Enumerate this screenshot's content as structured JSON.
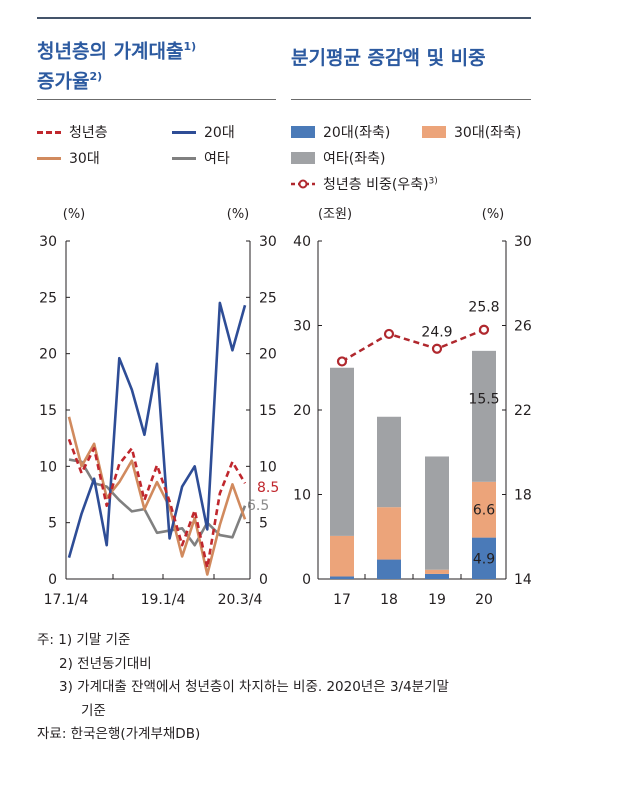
{
  "left": {
    "title_line1": "청년층의 가계대출",
    "title_sup1": "1)",
    "title_line2": "증가율",
    "title_sup2": "2)",
    "legend": [
      {
        "label": "청년층",
        "color": "#c0272d",
        "style": "dashed"
      },
      {
        "label": "20대",
        "color": "#2e4d96",
        "style": "solid"
      },
      {
        "label": "30대",
        "color": "#d18a5e",
        "style": "solid"
      },
      {
        "label": "여타",
        "color": "#7f7f7f",
        "style": "solid"
      }
    ]
  },
  "right": {
    "title": "분기평균 증감액 및 비중",
    "legend": [
      {
        "label": "20대(좌축)",
        "color": "#4a7ab8"
      },
      {
        "label": "30대(좌축)",
        "color": "#eca47a"
      },
      {
        "label": "여타(좌축)",
        "color": "#a0a2a5"
      },
      {
        "label": "청년층 비중(우축)",
        "sup": "3)",
        "color": "#b0282e"
      }
    ]
  },
  "chart_data": [
    {
      "type": "line",
      "ylabel_left": "(%)",
      "ylabel_right": "(%)",
      "ylim": [
        0,
        30
      ],
      "yticks": [
        0,
        5,
        10,
        15,
        20,
        25,
        30
      ],
      "x_tick_labels": [
        "17.1/4",
        "19.1/4",
        "20.3/4"
      ],
      "n_points": 15,
      "series": [
        {
          "name": "청년층",
          "color": "#c0272d",
          "dashed": true,
          "values": [
            12.4,
            9.4,
            11.6,
            6.5,
            10.2,
            11.6,
            7.0,
            10.1,
            6.9,
            3.0,
            6.1,
            1.0,
            7.6,
            10.4,
            8.5
          ],
          "end_label": "8.5"
        },
        {
          "name": "20대",
          "color": "#2e4d96",
          "values": [
            1.9,
            5.8,
            8.9,
            3.0,
            19.6,
            16.8,
            12.8,
            19.1,
            3.6,
            8.2,
            10.0,
            4.4,
            24.5,
            20.3,
            24.3
          ]
        },
        {
          "name": "30대",
          "color": "#d18a5e",
          "values": [
            14.4,
            10.0,
            12.0,
            7.2,
            8.6,
            10.5,
            6.2,
            8.6,
            6.4,
            2.0,
            5.4,
            0.4,
            4.8,
            8.4,
            5.3
          ]
        },
        {
          "name": "여타",
          "color": "#808080",
          "values": [
            10.6,
            10.4,
            8.5,
            8.2,
            7.0,
            6.0,
            6.2,
            4.1,
            4.3,
            4.5,
            3.0,
            5.0,
            3.9,
            3.7,
            6.5
          ],
          "end_label": "6.5"
        }
      ]
    },
    {
      "type": "bar",
      "stacked": true,
      "ylabel_left": "(조원)",
      "ylabel_right": "(%)",
      "ylim": [
        0,
        40
      ],
      "yticks": [
        0,
        10,
        20,
        30,
        40
      ],
      "ylim_right": [
        14,
        30
      ],
      "yticks_right": [
        14,
        18,
        22,
        26,
        30
      ],
      "categories": [
        "17",
        "18",
        "19",
        "20"
      ],
      "series": [
        {
          "name": "20대(좌축)",
          "color": "#4a7ab8",
          "values": [
            0.3,
            2.3,
            0.6,
            4.9
          ],
          "labels": [
            "",
            "",
            "",
            "4.9"
          ]
        },
        {
          "name": "30대(좌축)",
          "color": "#eca47a",
          "values": [
            4.8,
            6.2,
            0.5,
            6.6
          ],
          "labels": [
            "",
            "",
            "",
            "6.6"
          ]
        },
        {
          "name": "여타(좌축)",
          "color": "#a0a2a5",
          "values": [
            19.9,
            10.7,
            13.4,
            15.5
          ],
          "labels": [
            "",
            "",
            "",
            "15.5"
          ]
        }
      ],
      "line": {
        "name": "청년층 비중(우축)",
        "color": "#b0282e",
        "values": [
          24.3,
          25.6,
          24.9,
          25.8
        ],
        "labels": [
          "",
          "",
          "24.9",
          "25.8"
        ]
      }
    }
  ],
  "notes": [
    "주: 1) 기말 기준",
    "2) 전년동기대비",
    "3) 가계대출 잔액에서 청년층이 차지하는 비중. 2020년은 3/4분기말",
    "기준",
    "자료: 한국은행(가계부채DB)"
  ]
}
